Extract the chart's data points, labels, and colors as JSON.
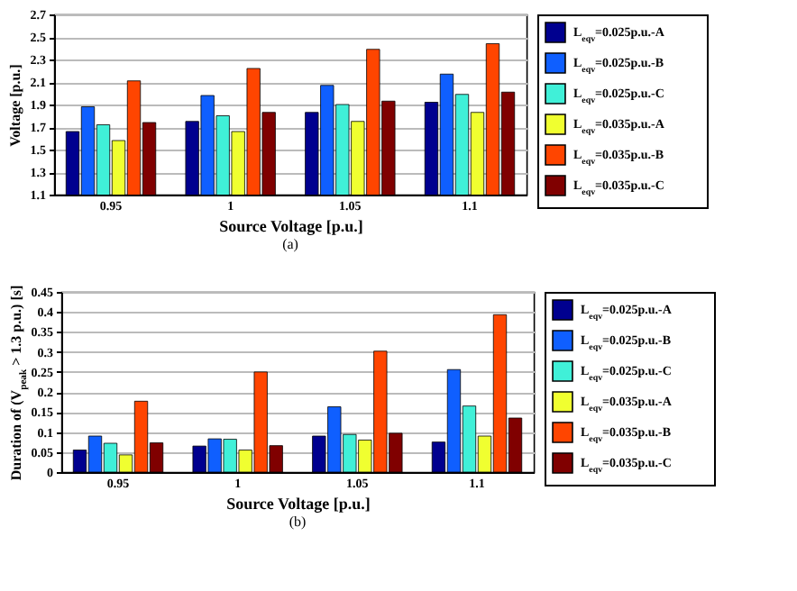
{
  "chart_data": [
    {
      "type": "bar",
      "categories": [
        "0.95",
        "1",
        "1.05",
        "1.1"
      ],
      "xlabel": "Source Voltage [p.u.]",
      "ylabel": "Voltage [p.u.]",
      "ylim": [
        1.1,
        2.7
      ],
      "yticks": [
        1.1,
        1.3,
        1.5,
        1.7,
        1.9,
        2.1,
        2.3,
        2.5,
        2.7
      ],
      "grid": "y",
      "legend": "right",
      "annotations": [
        "(a)"
      ],
      "series": [
        {
          "name": "L$_{eqv}$=0.025p.u.-A",
          "color": "#00008f",
          "values": [
            1.66,
            1.75,
            1.83,
            1.92
          ]
        },
        {
          "name": "L$_{eqv}$=0.025p.u.-B",
          "color": "#0f5fff",
          "values": [
            1.88,
            1.98,
            2.07,
            2.17
          ]
        },
        {
          "name": "L$_{eqv}$=0.025p.u.-C",
          "color": "#40f0d8",
          "values": [
            1.72,
            1.8,
            1.9,
            1.99
          ]
        },
        {
          "name": "L$_{eqv}$=0.035p.u.-A",
          "color": "#f0ff30",
          "values": [
            1.58,
            1.66,
            1.75,
            1.83
          ]
        },
        {
          "name": "L$_{eqv}$=0.035p.u.-B",
          "color": "#ff4500",
          "values": [
            2.11,
            2.22,
            2.39,
            2.44
          ]
        },
        {
          "name": "L$_{eqv}$=0.035p.u.-C",
          "color": "#800000",
          "values": [
            1.74,
            1.83,
            1.93,
            2.01
          ]
        }
      ]
    },
    {
      "type": "bar",
      "categories": [
        "0.95",
        "1",
        "1.05",
        "1.1"
      ],
      "xlabel": "Source Voltage [p.u.]",
      "ylabel": "Duration of (V$_{peak}$ > 1.3 p.u.) [s]",
      "ylim": [
        0,
        0.45
      ],
      "yticks": [
        0,
        0.05,
        0.1,
        0.15,
        0.2,
        0.25,
        0.3,
        0.35,
        0.4,
        0.45
      ],
      "grid": "y",
      "legend": "right",
      "annotations": [
        "(b)"
      ],
      "series": [
        {
          "name": "L$_{eqv}$=0.025p.u.-A",
          "color": "#00008f",
          "values": [
            0.055,
            0.065,
            0.09,
            0.075
          ]
        },
        {
          "name": "L$_{eqv}$=0.025p.u.-B",
          "color": "#0f5fff",
          "values": [
            0.09,
            0.083,
            0.163,
            0.256
          ]
        },
        {
          "name": "L$_{eqv}$=0.025p.u.-C",
          "color": "#40f0d8",
          "values": [
            0.072,
            0.082,
            0.094,
            0.165
          ]
        },
        {
          "name": "L$_{eqv}$=0.035p.u.-A",
          "color": "#f0ff30",
          "values": [
            0.043,
            0.055,
            0.08,
            0.09
          ]
        },
        {
          "name": "L$_{eqv}$=0.035p.u.-B",
          "color": "#ff4500",
          "values": [
            0.177,
            0.25,
            0.302,
            0.393
          ]
        },
        {
          "name": "L$_{eqv}$=0.035p.u.-C",
          "color": "#800000",
          "values": [
            0.073,
            0.066,
            0.097,
            0.135
          ]
        }
      ]
    }
  ]
}
